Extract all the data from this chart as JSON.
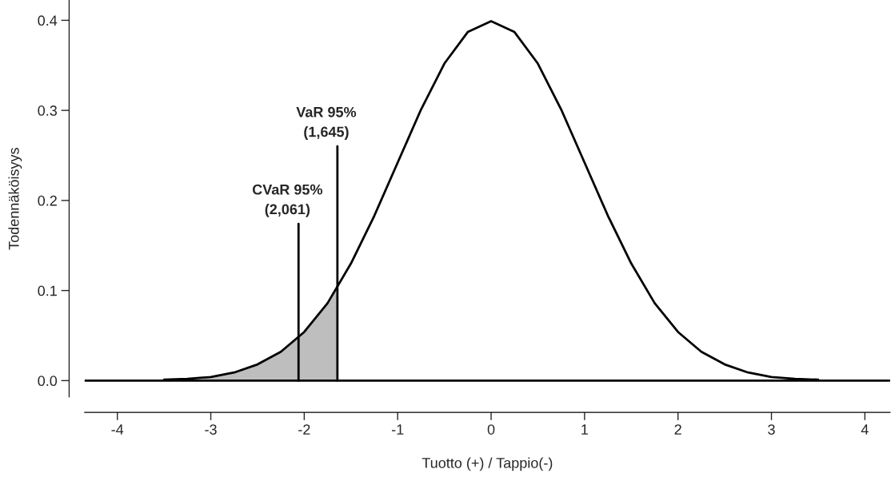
{
  "chart_data": {
    "type": "line",
    "xlabel": "Tuotto (+) / Tappio(-)",
    "ylabel": "Todennäköisyys",
    "xlim": [
      -4.35,
      4.27
    ],
    "ylim": [
      -0.018,
      0.422
    ],
    "xticks": [
      -4,
      -3,
      -2,
      -1,
      0,
      1,
      2,
      3,
      4
    ],
    "yticks": [
      {
        "value": 0.0,
        "label": "0.0"
      },
      0.1,
      0.2,
      0.3,
      0.4
    ],
    "grid": false,
    "legend": false,
    "series": [
      {
        "type": "area",
        "color": "#bebebe",
        "x": [
          -3.5,
          -3.25,
          -3.0,
          -2.75,
          -2.5,
          -2.25,
          -2.0,
          -1.75,
          -1.645
        ],
        "values": [
          0.001,
          0.002,
          0.004,
          0.009,
          0.018,
          0.032,
          0.054,
          0.086,
          0.103
        ]
      },
      {
        "color": "#000000",
        "x": [
          -3.5,
          -3.25,
          -3.0,
          -2.75,
          -2.5,
          -2.25,
          -2.0,
          -1.75,
          -1.5,
          -1.25,
          -1.0,
          -0.75,
          -0.5,
          -0.25,
          0.0,
          0.25,
          0.5,
          0.75,
          1.0,
          1.25,
          1.5,
          1.75,
          2.0,
          2.25,
          2.5,
          2.75,
          3.0,
          3.25,
          3.5
        ],
        "values": [
          0.001,
          0.002,
          0.004,
          0.009,
          0.018,
          0.032,
          0.054,
          0.086,
          0.13,
          0.183,
          0.242,
          0.301,
          0.352,
          0.387,
          0.399,
          0.387,
          0.352,
          0.301,
          0.242,
          0.183,
          0.13,
          0.086,
          0.054,
          0.032,
          0.018,
          0.009,
          0.004,
          0.002,
          0.001
        ]
      },
      {
        "type": "line",
        "color": "#000000",
        "x": [
          -2.061,
          -2.061
        ],
        "values": [
          0.0,
          0.174
        ]
      },
      {
        "type": "line",
        "color": "#000000",
        "x": [
          -1.645,
          -1.645
        ],
        "values": [
          0.0,
          0.26
        ]
      }
    ],
    "ref_lines": [
      {
        "axis": "y",
        "value": 0.0,
        "color": "#000000"
      }
    ],
    "annotations": [
      {
        "text": "CVaR 95%\n(2,061)",
        "x": -2.061,
        "y": 0.174
      },
      {
        "text": "VaR 95%\n(1,645)",
        "x": -1.645,
        "y": 0.26
      }
    ]
  }
}
